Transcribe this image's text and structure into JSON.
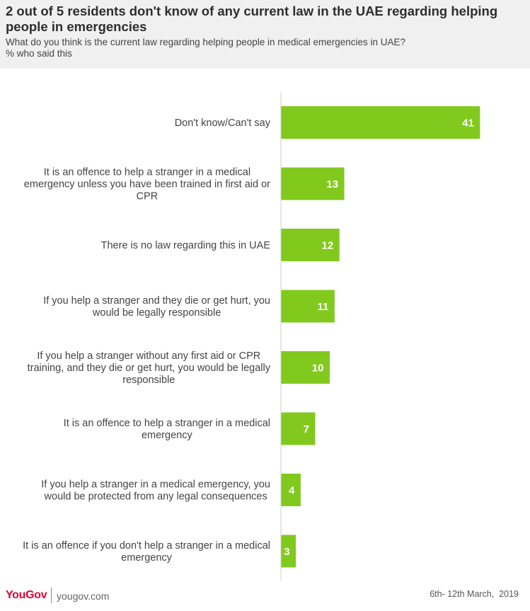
{
  "header": {
    "title": "2 out of 5 residents don't know of any current law in the UAE regarding helping people in emergencies",
    "subtitle": "What do you think is the current law regarding helping people in medical emergencies in UAE?",
    "unit_label": "% who said this"
  },
  "footer": {
    "logo": "YouGov",
    "site": "yougov.com",
    "date": "6th- 12th March,  2019"
  },
  "colors": {
    "bar": "#82c91e",
    "value_label": "#ffffff",
    "axis": "#cccccc",
    "category_label": "#444444"
  },
  "chart_data": {
    "type": "bar",
    "orientation": "horizontal",
    "title": "2 out of 5 residents don't know of any current law in the UAE regarding helping people in emergencies",
    "xlabel": "",
    "ylabel": "",
    "xlim": [
      0,
      45
    ],
    "grid": false,
    "legend": "none",
    "categories": [
      "Don't know/Can't say",
      "It is an offence to help a stranger in a medical emergency unless you have been trained in first aid or CPR",
      "There is no law regarding this in UAE",
      "If you help a stranger and they die or get hurt, you would be legally responsible",
      "If you help a stranger without any first aid or CPR training, and they die or get hurt, you would be legally responsible",
      "It is an offence to help a stranger in a medical emergency",
      "If you help a stranger in a medical emergency, you would be protected from any legal consequences",
      "It is an offence if you don't help a stranger in a medical emergency"
    ],
    "values": [
      41,
      13,
      12,
      11,
      10,
      7,
      4,
      3
    ]
  }
}
